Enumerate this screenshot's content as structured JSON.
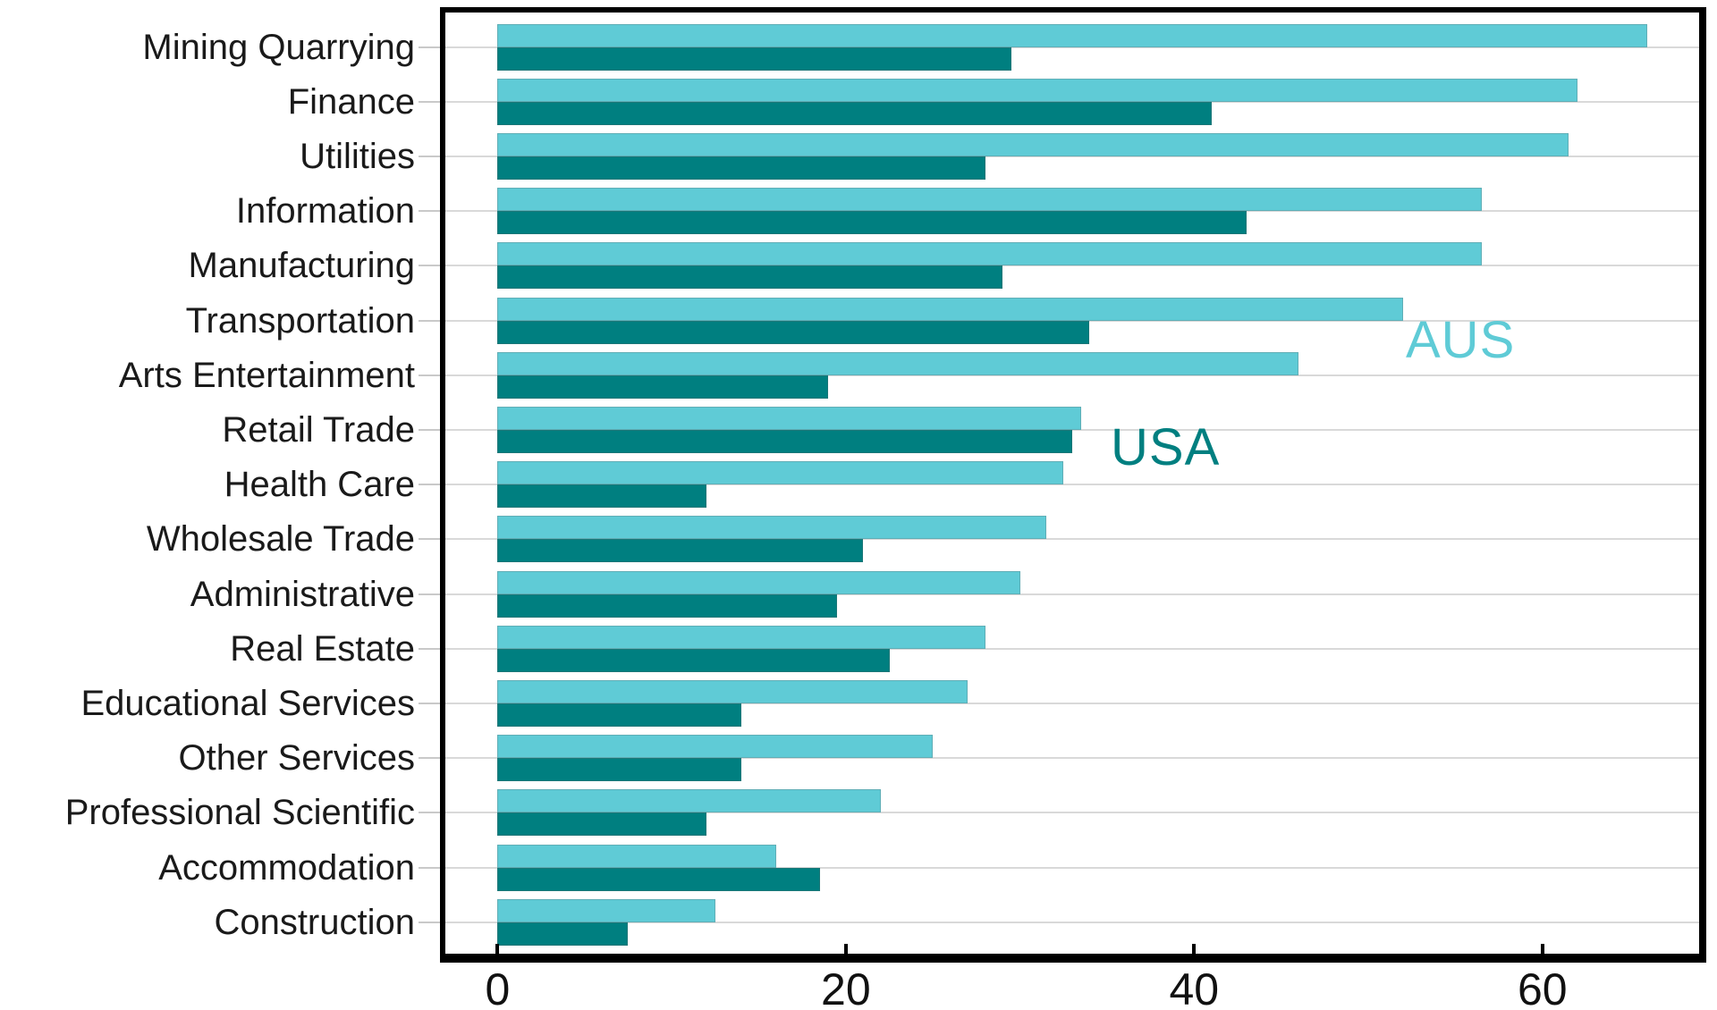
{
  "chart_data": {
    "type": "bar",
    "orientation": "horizontal",
    "title": "",
    "xlabel": "",
    "ylabel": "",
    "categories": [
      "Mining Quarrying",
      "Finance",
      "Utilities",
      "Information",
      "Manufacturing",
      "Transportation",
      "Arts Entertainment",
      "Retail Trade",
      "Health Care",
      "Wholesale Trade",
      "Administrative",
      "Real Estate",
      "Educational Services",
      "Other Services",
      "Professional Scientific",
      "Accommodation",
      "Construction"
    ],
    "series": [
      {
        "name": "AUS",
        "color": "#5FCBD6",
        "values": [
          66,
          62,
          61.5,
          56.5,
          56.5,
          52,
          46,
          33.5,
          32.5,
          31.5,
          30,
          28,
          27,
          25,
          22,
          16,
          12.5
        ]
      },
      {
        "name": "USA",
        "color": "#007F80",
        "values": [
          29.5,
          41,
          28,
          43,
          29,
          34,
          19,
          33,
          12,
          21,
          19.5,
          22.5,
          14,
          14,
          12,
          18.5,
          7.5
        ]
      }
    ],
    "xticks": [
      0,
      20,
      40,
      60
    ],
    "xtick_labels": [
      "0",
      "20",
      "40",
      "60"
    ],
    "xlim": [
      -3,
      69
    ],
    "grid": "category-center-lines",
    "legend_position": "in-plot-annotations",
    "annotations": [
      {
        "text": "AUS",
        "color": "#5FCBD6"
      },
      {
        "text": "USA",
        "color": "#007F80"
      }
    ]
  },
  "colors": {
    "background": "#ffffff",
    "axis_border": "#000000",
    "gridline": "#d9d9d9",
    "ytick": "#c9c9c9",
    "xtick_mark": "#000000",
    "category_label": "#1a1a1a",
    "xtick_label": "#111111"
  }
}
